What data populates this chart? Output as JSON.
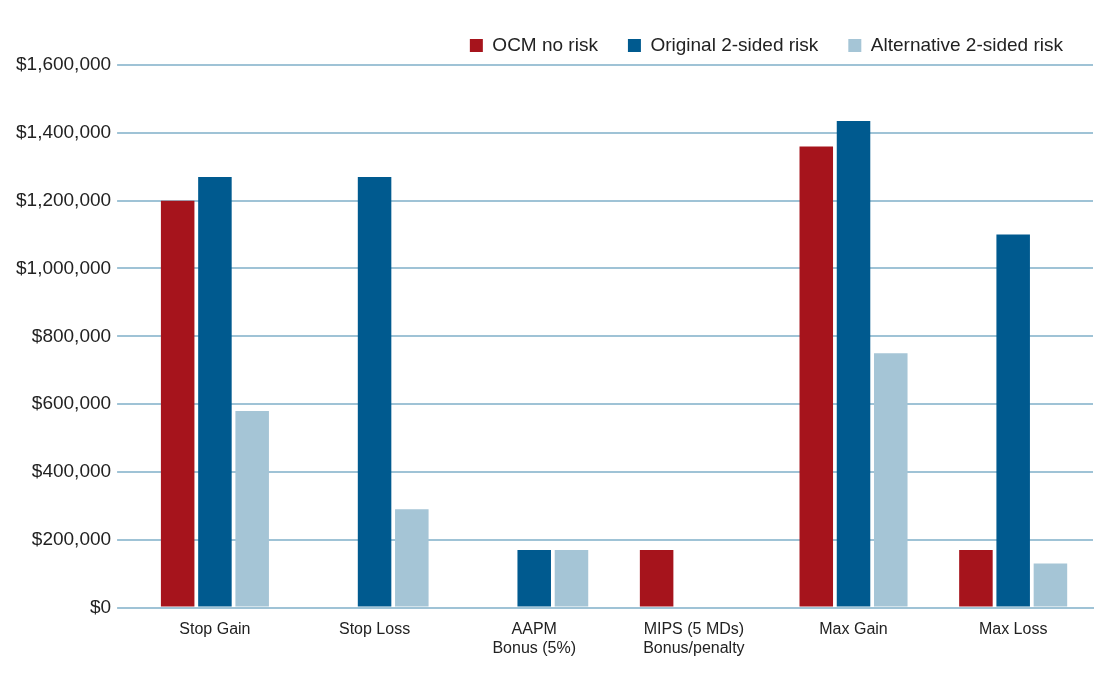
{
  "chart_data": {
    "type": "bar",
    "categories": [
      "Stop Gain",
      "Stop Loss",
      "AAPM\nBonus (5%)",
      "MIPS (5 MDs)\nBonus/penalty",
      "Max Gain",
      "Max Loss"
    ],
    "series": [
      {
        "name": "OCM no risk",
        "color": "#a6141c",
        "values": [
          1200000,
          0,
          0,
          170000,
          1360000,
          170000
        ]
      },
      {
        "name": "Original 2-sided risk",
        "color": "#005a8f",
        "values": [
          1270000,
          1270000,
          170000,
          0,
          1435000,
          1100000
        ]
      },
      {
        "name": "Alternative 2-sided risk",
        "color": "#a5c5d6",
        "values": [
          580000,
          290000,
          170000,
          0,
          750000,
          130000
        ]
      }
    ],
    "ylim": [
      0,
      1600000
    ],
    "yticks": [
      {
        "value": 0,
        "label": "$0"
      },
      {
        "value": 200000,
        "label": "$200,000"
      },
      {
        "value": 400000,
        "label": "$400,000"
      },
      {
        "value": 600000,
        "label": "$600,000"
      },
      {
        "value": 800000,
        "label": "$800,000"
      },
      {
        "value": 1000000,
        "label": "$1,000,000"
      },
      {
        "value": 1200000,
        "label": "$1,200,000"
      },
      {
        "value": 1400000,
        "label": "$1,400,000"
      },
      {
        "value": 1600000,
        "label": "$1,600,000"
      }
    ],
    "grid": "y",
    "legend": "top right"
  }
}
